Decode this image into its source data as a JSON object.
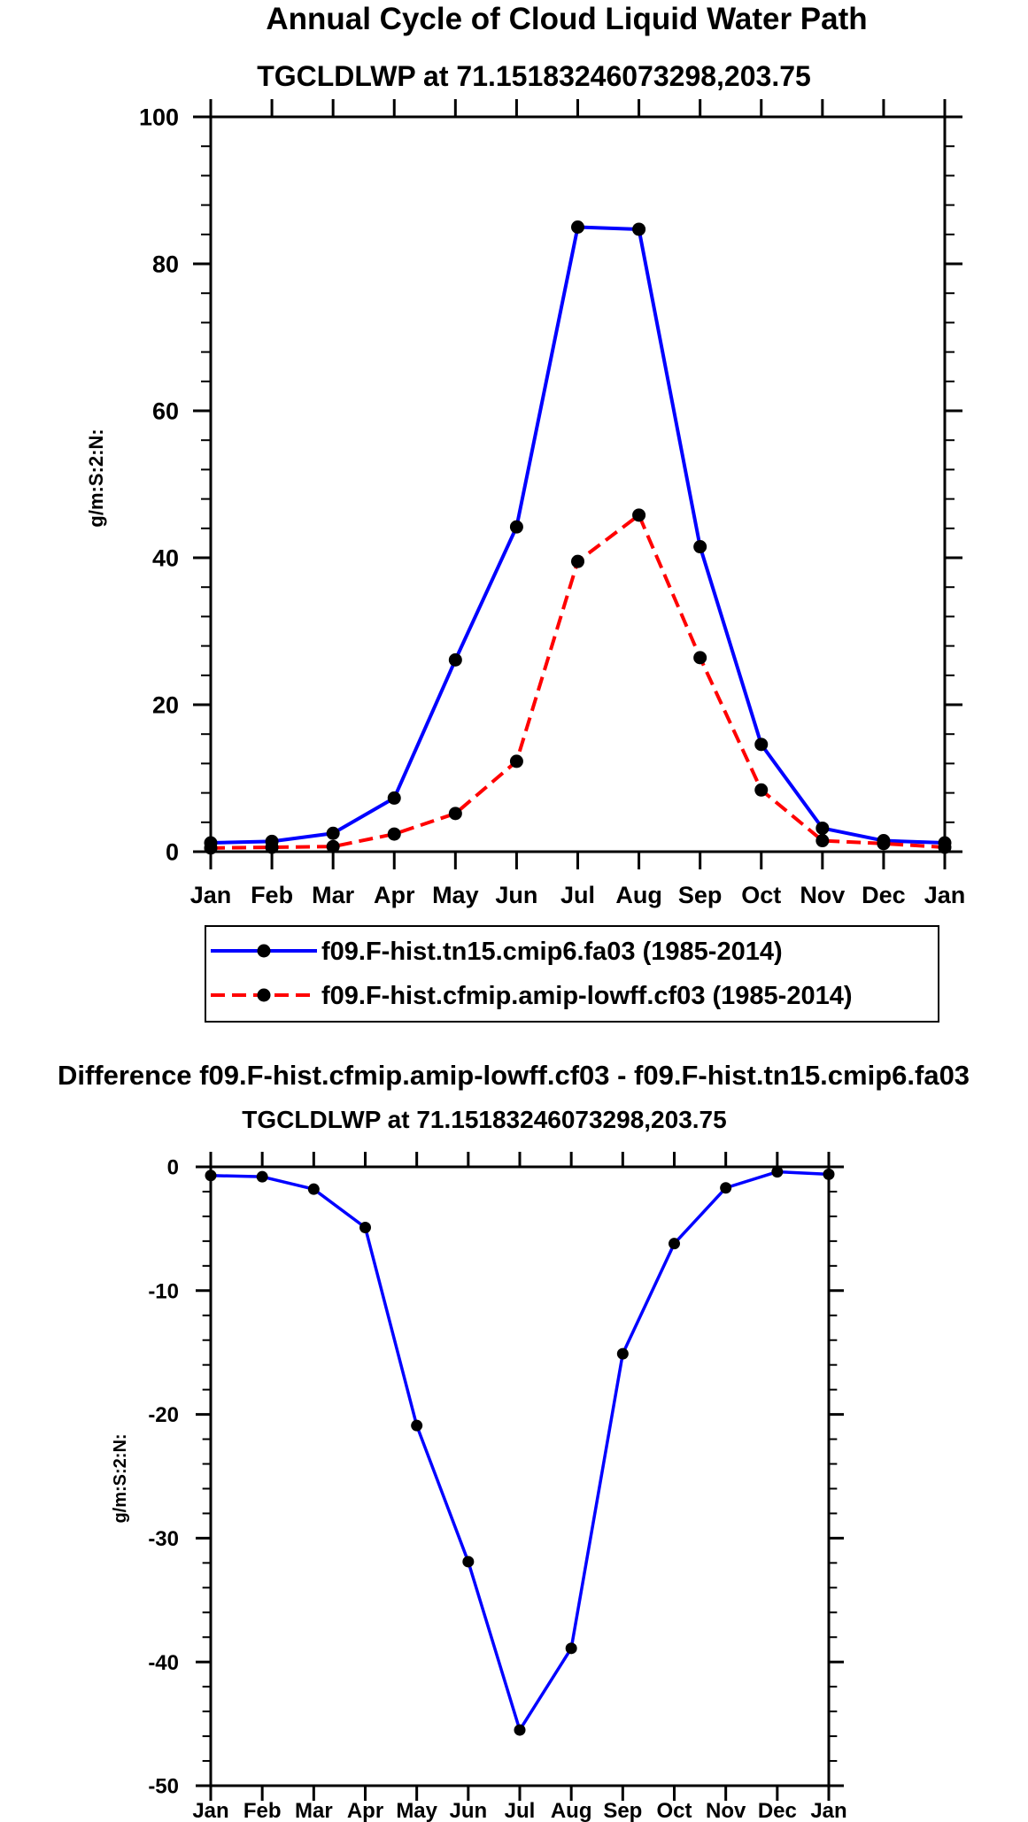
{
  "main_title": "Annual Cycle of Cloud Liquid Water Path",
  "chart_data": [
    {
      "type": "line",
      "title": "TGCLDLWP at 71.15183246073298,203.75",
      "xlabel": "",
      "ylabel": "g/m:S:2:N:",
      "categories": [
        "Jan",
        "Feb",
        "Mar",
        "Apr",
        "May",
        "Jun",
        "Jul",
        "Aug",
        "Sep",
        "Oct",
        "Nov",
        "Dec",
        "Jan"
      ],
      "ylim": [
        0,
        100
      ],
      "yticks": [
        0,
        20,
        40,
        60,
        80,
        100
      ],
      "series": [
        {
          "name": "f09.F-hist.tn15.cmip6.fa03 (1985-2014)",
          "color": "#0000ff",
          "dash": "solid",
          "values": [
            1.2,
            1.4,
            2.5,
            7.3,
            26.1,
            44.2,
            85.0,
            84.7,
            41.5,
            14.6,
            3.2,
            1.5,
            1.2
          ]
        },
        {
          "name": "f09.F-hist.cfmip.amip-lowff.cf03 (1985-2014)",
          "color": "#ff0000",
          "dash": "dashed",
          "values": [
            0.5,
            0.6,
            0.7,
            2.4,
            5.2,
            12.3,
            39.5,
            45.8,
            26.4,
            8.4,
            1.5,
            1.1,
            0.6
          ]
        }
      ],
      "legend": "bottom"
    },
    {
      "type": "line",
      "title": "Difference f09.F-hist.cfmip.amip-lowff.cf03 - f09.F-hist.tn15.cmip6.fa03",
      "subtitle": "TGCLDLWP at 71.15183246073298,203.75",
      "xlabel": "",
      "ylabel": "g/m:S:2:N:",
      "categories": [
        "Jan",
        "Feb",
        "Mar",
        "Apr",
        "May",
        "Jun",
        "Jul",
        "Aug",
        "Sep",
        "Oct",
        "Nov",
        "Dec",
        "Jan"
      ],
      "ylim": [
        -50,
        0
      ],
      "yticks": [
        0,
        -10,
        -20,
        -30,
        -40,
        -50
      ],
      "series": [
        {
          "color": "#0000ff",
          "dash": "solid",
          "values": [
            -0.7,
            -0.8,
            -1.8,
            -4.9,
            -20.9,
            -31.9,
            -45.5,
            -38.9,
            -15.1,
            -6.2,
            -1.7,
            -0.4,
            -0.6
          ]
        }
      ]
    }
  ]
}
